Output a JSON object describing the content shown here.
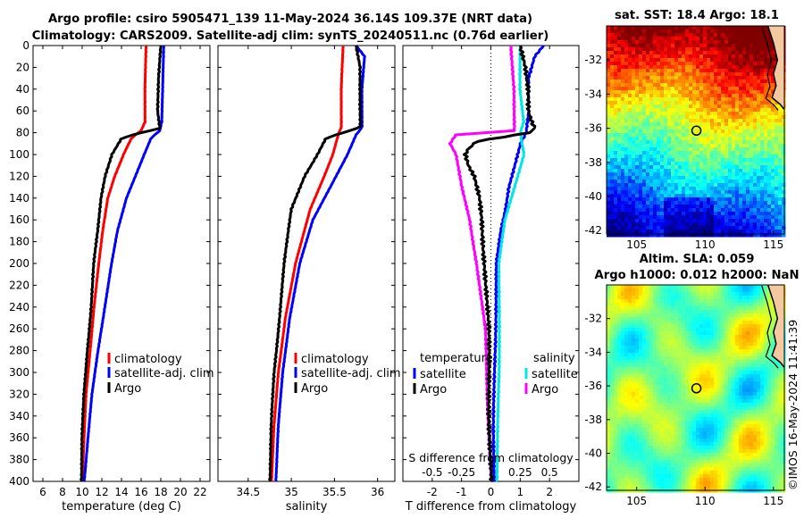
{
  "header": {
    "line1": "Argo profile: csiro 5905471_139 11-May-2024 36.14S 109.37E (NRT data)",
    "line2": "Climatology: CARS2009. Satellite-adj clim: synTS_20240511.nc (0.76d earlier)"
  },
  "stamp": "©IMOS 16-May-2024 11:41:39",
  "colors": {
    "climatology": "#ff0000",
    "satellite": "#0000ff",
    "argo": "#000000",
    "satellite_salinity": "#00e5e5",
    "argo_salinity": "#ff00ff"
  },
  "chart_data": [
    {
      "type": "line",
      "id": "temperature",
      "xlabel": "temperature (deg C)",
      "ylabel": "",
      "xlim": [
        5,
        23
      ],
      "ylim": [
        400,
        0
      ],
      "xticks": [
        "6",
        "8",
        "10",
        "12",
        "14",
        "16",
        "18",
        "20",
        "22"
      ],
      "xtick_values": [
        6,
        8,
        10,
        12,
        14,
        16,
        18,
        20,
        22
      ],
      "yticks": [
        "0",
        "20",
        "40",
        "60",
        "80",
        "100",
        "120",
        "140",
        "160",
        "180",
        "200",
        "220",
        "240",
        "260",
        "280",
        "300",
        "320",
        "340",
        "360",
        "380",
        "400"
      ],
      "ytick_values": [
        0,
        20,
        40,
        60,
        80,
        100,
        120,
        140,
        160,
        180,
        200,
        220,
        240,
        260,
        280,
        300,
        320,
        340,
        360,
        380,
        400
      ],
      "legend": [
        "climatology",
        "satellite-adj. clim",
        "Argo"
      ],
      "legend_position": "lower-right",
      "series": [
        {
          "name": "climatology",
          "depth": [
            0,
            40,
            70,
            78,
            85,
            100,
            120,
            140,
            170,
            200,
            240,
            280,
            320,
            360,
            400
          ],
          "values": [
            16.5,
            16.4,
            16.4,
            16.0,
            15.0,
            14.2,
            13.3,
            12.6,
            12.1,
            11.7,
            11.2,
            10.8,
            10.4,
            10.2,
            10.0
          ]
        },
        {
          "name": "satellite-adj. clim",
          "depth": [
            0,
            40,
            70,
            78,
            85,
            100,
            120,
            140,
            170,
            200,
            240,
            280,
            320,
            360,
            400
          ],
          "values": [
            18.3,
            18.2,
            18.1,
            17.9,
            17.0,
            16.3,
            15.4,
            14.5,
            13.6,
            13.0,
            12.3,
            11.6,
            11.0,
            10.6,
            10.2
          ]
        },
        {
          "name": "Argo",
          "depth": [
            0,
            30,
            60,
            76,
            80,
            85,
            100,
            120,
            140,
            170,
            200,
            240,
            280,
            320,
            360,
            400
          ],
          "values": [
            18.0,
            17.8,
            17.7,
            17.9,
            16.0,
            14.0,
            13.0,
            12.3,
            11.9,
            11.6,
            11.2,
            10.9,
            10.5,
            10.2,
            10.0,
            9.9
          ]
        }
      ]
    },
    {
      "type": "line",
      "id": "salinity",
      "xlabel": "salinity",
      "ylabel": "",
      "xlim": [
        34.15,
        36.2
      ],
      "ylim": [
        400,
        0
      ],
      "xticks": [
        "34.5",
        "35",
        "35.5",
        "36"
      ],
      "xtick_values": [
        34.5,
        35,
        35.5,
        36
      ],
      "legend": [
        "climatology",
        "satellite-adj. clim",
        "Argo"
      ],
      "legend_position": "lower-right",
      "series": [
        {
          "name": "climatology",
          "depth": [
            0,
            40,
            75,
            80,
            100,
            120,
            150,
            200,
            250,
            300,
            350,
            400
          ],
          "values": [
            35.6,
            35.58,
            35.58,
            35.55,
            35.48,
            35.38,
            35.22,
            35.05,
            34.93,
            34.85,
            34.8,
            34.77
          ]
        },
        {
          "name": "satellite-adj. clim",
          "depth": [
            0,
            10,
            40,
            75,
            82,
            100,
            130,
            160,
            200,
            250,
            300,
            350,
            400
          ],
          "values": [
            35.75,
            35.85,
            35.82,
            35.82,
            35.75,
            35.65,
            35.45,
            35.25,
            35.1,
            34.98,
            34.9,
            34.85,
            34.82
          ]
        },
        {
          "name": "Argo",
          "depth": [
            0,
            20,
            50,
            75,
            80,
            85,
            100,
            120,
            150,
            200,
            250,
            300,
            350,
            400
          ],
          "values": [
            35.75,
            35.8,
            35.8,
            35.8,
            35.6,
            35.4,
            35.3,
            35.15,
            35.0,
            34.92,
            34.86,
            34.8,
            34.77,
            34.75
          ]
        }
      ]
    },
    {
      "type": "line",
      "id": "difference",
      "xlabel": "T difference from climatology",
      "xlabel_top": "S difference from climatology",
      "xlim": [
        -3,
        3
      ],
      "ylim": [
        400,
        0
      ],
      "xticks": [
        "-2",
        "-1",
        "0",
        "1",
        "2"
      ],
      "xtick_values": [
        -2,
        -1,
        0,
        1,
        2
      ],
      "sticks": [
        "-0.5",
        "-0.25",
        "0",
        "0.25",
        "0.5"
      ],
      "stick_values": [
        -0.5,
        -0.25,
        0,
        0.25,
        0.5
      ],
      "legend_left_title": "temperature",
      "legend_right_title": "salinity",
      "legend_left": [
        "satellite",
        "Argo"
      ],
      "legend_right": [
        "satellite",
        "Argo"
      ],
      "series": [
        {
          "name": "temperature satellite",
          "depth": [
            0,
            10,
            30,
            60,
            80,
            90,
            100,
            130,
            150,
            170,
            200,
            260,
            300,
            350,
            400
          ],
          "values": [
            1.8,
            1.5,
            1.3,
            1.3,
            1.2,
            1.0,
            0.9,
            0.6,
            0.5,
            0.35,
            0.2,
            0.15,
            0.12,
            0.1,
            0.1
          ]
        },
        {
          "name": "temperature Argo",
          "depth": [
            0,
            20,
            40,
            60,
            70,
            76,
            80,
            88,
            95,
            100,
            110,
            120,
            140,
            160,
            200,
            260,
            320,
            400
          ],
          "values": [
            1.0,
            1.2,
            1.3,
            1.3,
            1.4,
            1.5,
            1.3,
            -0.5,
            -0.8,
            -0.9,
            -0.8,
            -0.6,
            -0.4,
            -0.3,
            -0.2,
            -0.1,
            -0.05,
            0.0
          ]
        },
        {
          "name": "salinity satellite",
          "depth": [
            0,
            40,
            70,
            80,
            100,
            130,
            160,
            200,
            300,
            400
          ],
          "values": [
            0.25,
            0.25,
            0.28,
            0.25,
            0.28,
            0.2,
            0.12,
            0.07,
            0.07,
            0.05
          ]
        },
        {
          "name": "salinity Argo",
          "depth": [
            0,
            40,
            70,
            78,
            82,
            90,
            100,
            130,
            160,
            200,
            260,
            320,
            400
          ],
          "values": [
            0.17,
            0.2,
            0.2,
            0.2,
            -0.3,
            -0.35,
            -0.3,
            -0.25,
            -0.18,
            -0.12,
            -0.05,
            -0.03,
            0.0
          ]
        }
      ]
    }
  ],
  "maps": {
    "sst": {
      "title": "sat. SST: 18.4 Argo: 18.1",
      "xticks": [
        "105",
        "110",
        "115"
      ],
      "xtick_values": [
        105,
        110,
        115
      ],
      "yticks": [
        "-32",
        "-34",
        "-36",
        "-38",
        "-40",
        "-42"
      ],
      "ytick_values": [
        -32,
        -34,
        -36,
        -38,
        -40,
        -42
      ],
      "lon_range": [
        102.8,
        115.8
      ],
      "lat_range": [
        -42.2,
        -30.0
      ],
      "argo_lon": 109.37,
      "argo_lat": -36.14
    },
    "sla": {
      "title_line1": "Altim. SLA: 0.059",
      "title_line2": "Argo h1000: 0.012 h2000: NaN",
      "xticks": [
        "105",
        "110",
        "115"
      ],
      "xtick_values": [
        105,
        110,
        115
      ],
      "yticks": [
        "-32",
        "-34",
        "-36",
        "-38",
        "-40",
        "-42"
      ],
      "ytick_values": [
        -32,
        -34,
        -36,
        -38,
        -40,
        -42
      ],
      "lon_range": [
        102.8,
        115.8
      ],
      "lat_range": [
        -42.2,
        -30.0
      ],
      "argo_lon": 109.37,
      "argo_lat": -36.14
    }
  }
}
